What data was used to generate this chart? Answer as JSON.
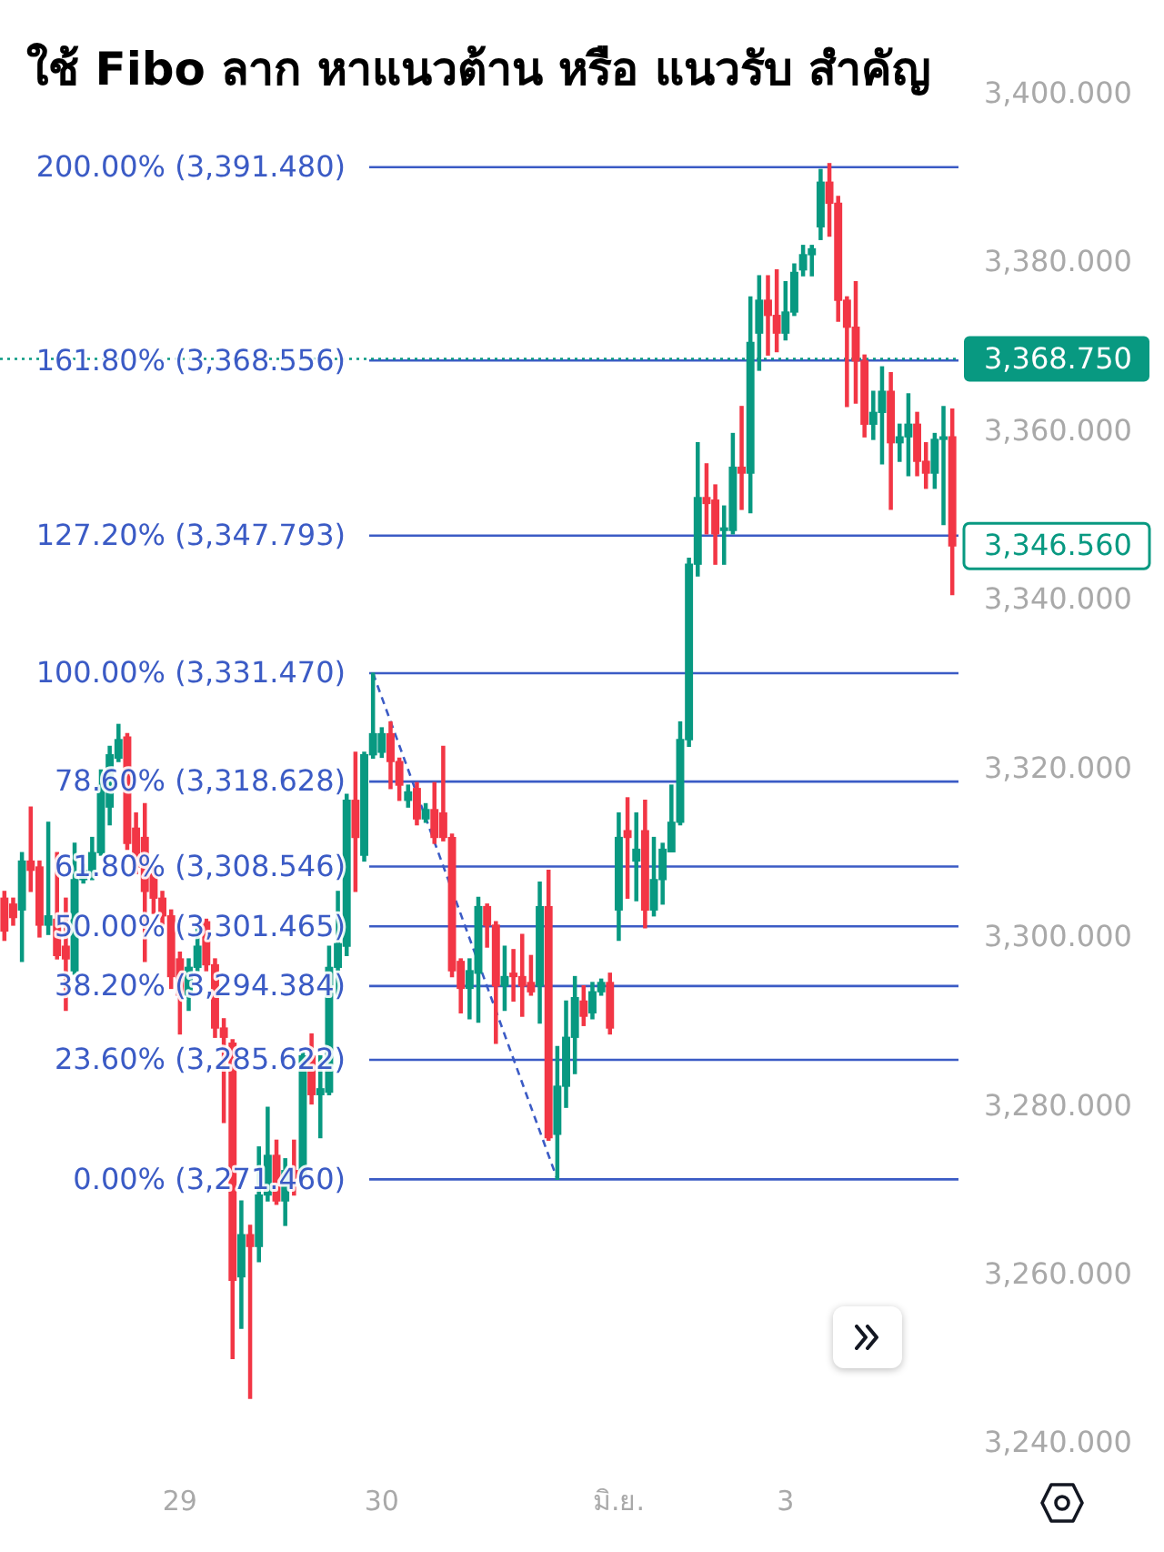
{
  "chart_data": {
    "type": "candlestick",
    "categories": [
      null,
      null,
      null,
      null,
      null,
      null,
      null,
      null,
      null,
      null,
      null,
      null,
      null,
      null,
      null,
      null,
      null,
      null,
      null,
      null,
      "29",
      null,
      null,
      null,
      null,
      null,
      null,
      null,
      null,
      null,
      null,
      null,
      null,
      null,
      null,
      null,
      null,
      null,
      null,
      null,
      null,
      null,
      null,
      "30",
      null,
      null,
      null,
      null,
      null,
      null,
      null,
      null,
      null,
      null,
      null,
      null,
      null,
      null,
      null,
      null,
      null,
      null,
      null,
      null,
      null,
      null,
      null,
      null,
      null,
      null,
      "มิ.ย.",
      null,
      null,
      null,
      null,
      null,
      null,
      null,
      null,
      null,
      null,
      null,
      null,
      null,
      null,
      null,
      null,
      null,
      null,
      "3",
      null,
      null,
      null,
      null,
      null,
      null,
      null,
      null,
      null,
      null,
      null,
      null,
      null,
      null,
      null,
      null,
      null,
      null,
      null
    ],
    "ohlc": [
      [
        3304.8,
        3305.6,
        3299.8,
        3300.9
      ],
      [
        3304.1,
        3304.8,
        3301.6,
        3302.5
      ],
      [
        3303.4,
        3310.2,
        3297.3,
        3309.2
      ],
      [
        3309.2,
        3315.6,
        3305.6,
        3308.1
      ],
      [
        3308.5,
        3309.2,
        3300.2,
        3301.6
      ],
      [
        3301.6,
        3313.8,
        3300.5,
        3302.7
      ],
      [
        3302.3,
        3310.2,
        3297.6,
        3298.0
      ],
      [
        3299.1,
        3304.8,
        3291.5,
        3297.6
      ],
      [
        3296.2,
        3311.3,
        3295.8,
        3307.0
      ],
      [
        3307.0,
        3308.8,
        3306.6,
        3308.1
      ],
      [
        3307.7,
        3312.0,
        3307.0,
        3310.2
      ],
      [
        3310.2,
        3320.0,
        3309.9,
        3318.2
      ],
      [
        3315.6,
        3322.8,
        3313.5,
        3321.8
      ],
      [
        3321.4,
        3325.4,
        3321.0,
        3323.6
      ],
      [
        3323.9,
        3324.3,
        3310.6,
        3311.3
      ],
      [
        3313.1,
        3314.9,
        3307.7,
        3308.5
      ],
      [
        3312.0,
        3316.0,
        3297.3,
        3305.6
      ],
      [
        3307.7,
        3308.5,
        3303.0,
        3304.8
      ],
      [
        3304.8,
        3305.6,
        3301.6,
        3302.7
      ],
      [
        3302.7,
        3303.4,
        3294.1,
        3295.5
      ],
      [
        3297.6,
        3298.4,
        3288.7,
        3293.3
      ],
      [
        3293.3,
        3297.6,
        3291.5,
        3296.6
      ],
      [
        3296.6,
        3301.2,
        3296.2,
        3299.1
      ],
      [
        3302.0,
        3302.3,
        3296.2,
        3296.9
      ],
      [
        3296.9,
        3297.6,
        3288.3,
        3289.4
      ],
      [
        3289.4,
        3290.5,
        3278.2,
        3288.3
      ],
      [
        3287.6,
        3288.0,
        3250.2,
        3259.5
      ],
      [
        3259.9,
        3268.9,
        3253.8,
        3264.9
      ],
      [
        3264.9,
        3266.0,
        3245.5,
        3263.5
      ],
      [
        3263.5,
        3275.3,
        3261.7,
        3269.6
      ],
      [
        3269.6,
        3280.0,
        3268.9,
        3274.3
      ],
      [
        3274.3,
        3276.1,
        3268.5,
        3268.9
      ],
      [
        3268.9,
        3273.9,
        3266.0,
        3272.5
      ],
      [
        3272.5,
        3276.1,
        3269.6,
        3271.7
      ],
      [
        3271.7,
        3286.5,
        3271.4,
        3286.1
      ],
      [
        3286.1,
        3288.7,
        3280.4,
        3281.5
      ],
      [
        3281.5,
        3286.1,
        3276.4,
        3282.2
      ],
      [
        3281.8,
        3299.1,
        3281.5,
        3296.6
      ],
      [
        3296.6,
        3305.6,
        3293.3,
        3299.4
      ],
      [
        3299.1,
        3317.1,
        3298.0,
        3316.4
      ],
      [
        3316.4,
        3322.1,
        3305.6,
        3312.0
      ],
      [
        3309.9,
        3322.1,
        3309.2,
        3321.8
      ],
      [
        3321.8,
        3331.47,
        3321.4,
        3324.3
      ],
      [
        3322.1,
        3325.0,
        3321.5,
        3324.3
      ],
      [
        3324.3,
        3325.7,
        3317.8,
        3321.0
      ],
      [
        3321.0,
        3321.4,
        3316.4,
        3318.2
      ],
      [
        3316.4,
        3318.2,
        3315.6,
        3317.4
      ],
      [
        3317.8,
        3318.5,
        3313.5,
        3314.2
      ],
      [
        3314.2,
        3316.0,
        3313.8,
        3315.3
      ],
      [
        3315.3,
        3318.5,
        3311.3,
        3312.0
      ],
      [
        3314.9,
        3322.8,
        3311.6,
        3312.0
      ],
      [
        3312.0,
        3312.4,
        3295.5,
        3296.2
      ],
      [
        3297.3,
        3297.6,
        3291.2,
        3294.1
      ],
      [
        3294.1,
        3297.6,
        3290.5,
        3296.2
      ],
      [
        3295.9,
        3304.9,
        3290.1,
        3303.8
      ],
      [
        3303.8,
        3304.1,
        3299.0,
        3301.6
      ],
      [
        3301.6,
        3302.0,
        3287.6,
        3294.4
      ],
      [
        3294.4,
        3299.1,
        3291.5,
        3295.5
      ],
      [
        3295.9,
        3298.7,
        3292.6,
        3295.5
      ],
      [
        3295.5,
        3300.5,
        3290.8,
        3294.4
      ],
      [
        3294.8,
        3298.0,
        3293.3,
        3293.7
      ],
      [
        3294.4,
        3306.7,
        3290.0,
        3303.8
      ],
      [
        3303.8,
        3308.1,
        3276.1,
        3276.4
      ],
      [
        3276.8,
        3287.2,
        3271.46,
        3282.5
      ],
      [
        3282.5,
        3292.6,
        3280.0,
        3288.3
      ],
      [
        3288.3,
        3295.5,
        3284.0,
        3293.0
      ],
      [
        3292.6,
        3294.4,
        3289.7,
        3290.8
      ],
      [
        3291.2,
        3294.8,
        3290.5,
        3293.7
      ],
      [
        3293.7,
        3295.2,
        3293.3,
        3294.8
      ],
      [
        3294.8,
        3295.9,
        3288.7,
        3289.4
      ],
      [
        3303.4,
        3314.9,
        3299.8,
        3312.0
      ],
      [
        3312.8,
        3316.7,
        3304.8,
        3312.0
      ],
      [
        3309.2,
        3314.9,
        3304.5,
        3310.6
      ],
      [
        3312.8,
        3316.4,
        3301.3,
        3303.4
      ],
      [
        3303.4,
        3312.0,
        3302.7,
        3307.0
      ],
      [
        3307.0,
        3311.3,
        3304.1,
        3310.6
      ],
      [
        3310.3,
        3318.2,
        3310.3,
        3313.8
      ],
      [
        3313.8,
        3325.7,
        3313.5,
        3323.6
      ],
      [
        3323.6,
        3345.1,
        3322.8,
        3344.4
      ],
      [
        3344.4,
        3358.8,
        3343.0,
        3352.3
      ],
      [
        3352.3,
        3356.3,
        3348.0,
        3351.6
      ],
      [
        3352.0,
        3353.8,
        3344.4,
        3348.0
      ],
      [
        3348.4,
        3351.3,
        3344.4,
        3348.7
      ],
      [
        3348.4,
        3359.9,
        3348.0,
        3355.9
      ],
      [
        3355.9,
        3363.1,
        3350.9,
        3355.2
      ],
      [
        3355.2,
        3376.1,
        3350.5,
        3370.7
      ],
      [
        3371.8,
        3378.6,
        3367.4,
        3375.7
      ],
      [
        3375.7,
        3378.6,
        3369.2,
        3373.9
      ],
      [
        3373.9,
        3379.3,
        3369.6,
        3371.8
      ],
      [
        3371.8,
        3377.9,
        3371.0,
        3374.3
      ],
      [
        3374.3,
        3380.0,
        3373.9,
        3379.0
      ],
      [
        3379.3,
        3382.2,
        3378.6,
        3381.1
      ],
      [
        3381.1,
        3382.2,
        3378.6,
        3381.8
      ],
      [
        3384.4,
        3391.2,
        3382.9,
        3389.7
      ],
      [
        3389.7,
        3391.9,
        3383.3,
        3387.2
      ],
      [
        3387.2,
        3388.0,
        3373.2,
        3375.7
      ],
      [
        3375.7,
        3376.1,
        3363.1,
        3372.5
      ],
      [
        3372.5,
        3377.9,
        3363.5,
        3368.5
      ],
      [
        3368.5,
        3369.2,
        3359.5,
        3361.0
      ],
      [
        3361.0,
        3364.9,
        3359.2,
        3362.4
      ],
      [
        3362.4,
        3367.8,
        3356.3,
        3364.9
      ],
      [
        3364.9,
        3367.1,
        3350.9,
        3358.8
      ],
      [
        3358.8,
        3361.0,
        3356.6,
        3359.5
      ],
      [
        3359.5,
        3364.6,
        3354.9,
        3361.0
      ],
      [
        3361.0,
        3362.4,
        3354.9,
        3356.6
      ],
      [
        3356.6,
        3358.8,
        3353.4,
        3355.2
      ],
      [
        3355.2,
        3359.9,
        3353.4,
        3359.2
      ],
      [
        3359.2,
        3363.1,
        3349.1,
        3359.5
      ],
      [
        3359.5,
        3362.8,
        3340.8,
        3346.56
      ]
    ],
    "colors": [
      "#f23645",
      "#f23645",
      "#089981",
      "#f23645",
      "#f23645",
      "#089981",
      "#f23645",
      "#f23645",
      "#089981",
      "#089981",
      "#089981",
      "#089981",
      "#089981",
      "#089981",
      "#f23645",
      "#f23645",
      "#f23645",
      "#f23645",
      "#f23645",
      "#f23645",
      "#f23645",
      "#089981",
      "#089981",
      "#f23645",
      "#f23645",
      "#f23645",
      "#f23645",
      "#089981",
      "#f23645",
      "#089981",
      "#089981",
      "#f23645",
      "#089981",
      "#f23645",
      "#089981",
      "#f23645",
      "#089981",
      "#089981",
      "#089981",
      "#089981",
      "#f23645",
      "#089981",
      "#089981",
      "#089981",
      "#f23645",
      "#f23645",
      "#089981",
      "#f23645",
      "#089981",
      "#f23645",
      "#f23645",
      "#f23645",
      "#f23645",
      "#089981",
      "#089981",
      "#f23645",
      "#f23645",
      "#089981",
      "#f23645",
      "#f23645",
      "#f23645",
      "#089981",
      "#f23645",
      "#089981",
      "#089981",
      "#089981",
      "#f23645",
      "#089981",
      "#089981",
      "#f23645",
      "#089981",
      "#f23645",
      "#089981",
      "#f23645",
      "#089981",
      "#089981",
      "#089981",
      "#089981",
      "#089981",
      "#089981",
      "#f23645",
      "#f23645",
      "#089981",
      "#089981",
      "#f23645",
      "#089981",
      "#089981",
      "#f23645",
      "#f23645",
      "#089981",
      "#089981",
      "#089981",
      "#089981",
      "#089981",
      "#f23645",
      "#f23645",
      "#f23645",
      "#f23645",
      "#f23645",
      "#089981",
      "#089981",
      "#f23645",
      "#089981",
      "#089981",
      "#f23645",
      "#f23645",
      "#089981",
      "#089981",
      "#f23645"
    ],
    "series": [
      {
        "type": "line",
        "color": "#3b5bc5",
        "line_style": "dashed",
        "marker": "none",
        "values": [
          null,
          null,
          null,
          null,
          null,
          null,
          null,
          null,
          null,
          null,
          null,
          null,
          null,
          null,
          null,
          null,
          null,
          null,
          null,
          null,
          null,
          null,
          null,
          null,
          null,
          null,
          null,
          null,
          null,
          null,
          null,
          null,
          null,
          null,
          null,
          null,
          null,
          null,
          null,
          null,
          null,
          null,
          3331.47,
          null,
          null,
          null,
          null,
          null,
          null,
          null,
          null,
          null,
          null,
          null,
          null,
          null,
          null,
          null,
          null,
          null,
          null,
          null,
          null,
          3271.46,
          null,
          null,
          null,
          null,
          null,
          null,
          null,
          null,
          null,
          null,
          null,
          null,
          null,
          null,
          null,
          null,
          null,
          null,
          null,
          null,
          null,
          null,
          null,
          null,
          null,
          null,
          null,
          null,
          null,
          null,
          null,
          null,
          null,
          null,
          null,
          null,
          null,
          null,
          null,
          null,
          null,
          null,
          null,
          null,
          null
        ]
      }
    ],
    "ylim": [
      3240,
      3411.3
    ],
    "yticks": [
      {
        "value": 3240,
        "label": "3,240.000"
      },
      {
        "value": 3260,
        "label": "3,260.000"
      },
      {
        "value": 3280,
        "label": "3,280.000"
      },
      {
        "value": 3300,
        "label": "3,300.000"
      },
      {
        "value": 3320,
        "label": "3,320.000"
      },
      {
        "value": 3340,
        "label": "3,340.000"
      },
      {
        "value": 3360,
        "label": "3,360.000"
      },
      {
        "value": 3380,
        "label": "3,380.000"
      },
      {
        "value": 3400,
        "label": "3,400.000"
      }
    ],
    "ref_lines": [
      {
        "axis": "y",
        "value": 3391.48,
        "label": "200.00% (3,391.480)",
        "color": "#3b5bc5"
      },
      {
        "axis": "y",
        "value": 3368.556,
        "label": "161.80% (3,368.556)",
        "color": "#3b5bc5"
      },
      {
        "axis": "y",
        "value": 3347.793,
        "label": "127.20% (3,347.793)",
        "color": "#3b5bc5"
      },
      {
        "axis": "y",
        "value": 3331.47,
        "label": "100.00% (3,331.470)",
        "color": "#3b5bc5"
      },
      {
        "axis": "y",
        "value": 3318.628,
        "label": "78.60% (3,318.628)",
        "color": "#3b5bc5"
      },
      {
        "axis": "y",
        "value": 3308.546,
        "label": "61.80% (3,308.546)",
        "color": "#3b5bc5"
      },
      {
        "axis": "y",
        "value": 3301.465,
        "label": "50.00% (3,301.465)",
        "color": "#3b5bc5"
      },
      {
        "axis": "y",
        "value": 3294.384,
        "label": "38.20% (3,294.384)",
        "color": "#3b5bc5"
      },
      {
        "axis": "y",
        "value": 3285.622,
        "label": "23.60% (3,285.622)",
        "color": "#3b5bc5"
      },
      {
        "axis": "y",
        "value": 3271.46,
        "label": "0.00% (3,271.460)",
        "color": "#3b5bc5"
      },
      {
        "axis": "y",
        "value": 3368.75,
        "label": "3,368.750",
        "color": "#089981",
        "line_style": "dotted"
      }
    ],
    "annotations": [
      "ใช้ Fibo ลาก หาแนวต้าน หรือ แนวรับ สำคัญ",
      "3,346.560"
    ]
  }
}
